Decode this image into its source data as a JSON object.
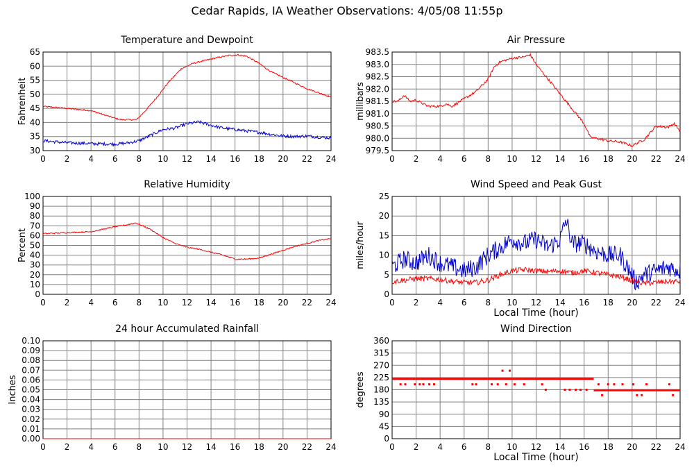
{
  "page_title": "Cedar Rapids, IA Weather Observations: 4/05/08 11:55p",
  "colors": {
    "red": "#ff0000",
    "blue": "#0000cc",
    "grid": "#808080",
    "frame": "#000000",
    "background": "#ffffff"
  },
  "chart_data": [
    {
      "id": "temp",
      "type": "line",
      "title": "Temperature and Dewpoint",
      "xlabel": "",
      "ylabel": "Fahrenheit",
      "xlim": [
        0,
        24
      ],
      "ylim": [
        30,
        65
      ],
      "xticks": [
        0,
        2,
        4,
        6,
        8,
        10,
        12,
        14,
        16,
        18,
        20,
        22,
        24
      ],
      "yticks": [
        "30",
        "35",
        "40",
        "45",
        "50",
        "55",
        "60",
        "65"
      ],
      "grid": true,
      "series": [
        {
          "color": "#ff0000",
          "noise": 0.25,
          "points": [
            [
              0,
              45.7
            ],
            [
              2,
              45
            ],
            [
              4,
              44.2
            ],
            [
              6,
              41.5
            ],
            [
              6.5,
              41
            ],
            [
              7.8,
              41
            ],
            [
              8.5,
              44
            ],
            [
              9.5,
              49
            ],
            [
              10.5,
              54.5
            ],
            [
              11.5,
              59
            ],
            [
              12.5,
              61
            ],
            [
              13.5,
              62
            ],
            [
              14.5,
              63
            ],
            [
              15.5,
              63.8
            ],
            [
              16.2,
              64
            ],
            [
              17,
              63.5
            ],
            [
              18,
              61
            ],
            [
              19,
              58
            ],
            [
              20,
              56
            ],
            [
              21,
              54
            ],
            [
              22,
              52
            ],
            [
              23,
              50.5
            ],
            [
              24,
              49
            ]
          ]
        },
        {
          "color": "#0000cc",
          "noise": 0.55,
          "points": [
            [
              0,
              33.5
            ],
            [
              2,
              32.8
            ],
            [
              4,
              32.5
            ],
            [
              6,
              32.3
            ],
            [
              7,
              32.7
            ],
            [
              8,
              33.5
            ],
            [
              9,
              35.5
            ],
            [
              10,
              37.5
            ],
            [
              11,
              38
            ],
            [
              12,
              39.5
            ],
            [
              13,
              40.2
            ],
            [
              14,
              39
            ],
            [
              15,
              38
            ],
            [
              16,
              37.5
            ],
            [
              17,
              37
            ],
            [
              18,
              36.5
            ],
            [
              19,
              35.8
            ],
            [
              20,
              35.2
            ],
            [
              21,
              35
            ],
            [
              22,
              35.2
            ],
            [
              23,
              34.8
            ],
            [
              24,
              34.5
            ]
          ]
        }
      ]
    },
    {
      "id": "pressure",
      "type": "line",
      "title": "Air Pressure",
      "xlabel": "",
      "ylabel": "millibars",
      "xlim": [
        0,
        24
      ],
      "ylim": [
        979.5,
        983.5
      ],
      "xticks": [
        0,
        2,
        4,
        6,
        8,
        10,
        12,
        14,
        16,
        18,
        20,
        22,
        24
      ],
      "yticks": [
        "979.5",
        "980.0",
        "980.5",
        "981.0",
        "981.5",
        "982.0",
        "982.5",
        "983.0",
        "983.5"
      ],
      "grid": true,
      "series": [
        {
          "color": "#ff0000",
          "noise": 0.05,
          "points": [
            [
              0,
              981.5
            ],
            [
              0.5,
              981.5
            ],
            [
              1,
              981.75
            ],
            [
              1.5,
              981.5
            ],
            [
              2,
              981.55
            ],
            [
              3,
              981.3
            ],
            [
              4,
              981.3
            ],
            [
              4.5,
              981.4
            ],
            [
              5,
              981.3
            ],
            [
              6,
              981.6
            ],
            [
              7,
              981.9
            ],
            [
              8,
              982.4
            ],
            [
              8.5,
              982.9
            ],
            [
              9,
              983.1
            ],
            [
              10,
              983.25
            ],
            [
              11,
              983.3
            ],
            [
              11.5,
              983.4
            ],
            [
              12,
              983.0
            ],
            [
              13,
              982.4
            ],
            [
              14,
              981.8
            ],
            [
              15,
              981.2
            ],
            [
              16,
              980.6
            ],
            [
              16.5,
              980.05
            ],
            [
              17,
              980.0
            ],
            [
              18,
              979.9
            ],
            [
              19,
              979.85
            ],
            [
              20,
              979.7
            ],
            [
              21,
              979.95
            ],
            [
              22,
              980.5
            ],
            [
              23,
              980.45
            ],
            [
              23.5,
              980.6
            ],
            [
              24,
              980.3
            ]
          ]
        }
      ]
    },
    {
      "id": "humidity",
      "type": "line",
      "title": "Relative Humidity",
      "xlabel": "",
      "ylabel": "Percent",
      "xlim": [
        0,
        24
      ],
      "ylim": [
        0,
        100
      ],
      "xticks": [
        0,
        2,
        4,
        6,
        8,
        10,
        12,
        14,
        16,
        18,
        20,
        22,
        24
      ],
      "yticks": [
        "0",
        "10",
        "20",
        "30",
        "40",
        "50",
        "60",
        "70",
        "80",
        "90",
        "100"
      ],
      "grid": true,
      "series": [
        {
          "color": "#ff0000",
          "noise": 0.6,
          "points": [
            [
              0,
              62
            ],
            [
              2,
              63
            ],
            [
              4,
              64
            ],
            [
              6,
              69
            ],
            [
              7,
              71
            ],
            [
              7.7,
              73
            ],
            [
              8.3,
              70
            ],
            [
              9,
              66
            ],
            [
              10,
              58
            ],
            [
              11,
              52
            ],
            [
              12,
              48
            ],
            [
              13,
              46
            ],
            [
              14,
              43
            ],
            [
              15,
              40
            ],
            [
              16,
              36
            ],
            [
              17,
              36
            ],
            [
              18,
              37
            ],
            [
              19,
              41
            ],
            [
              20,
              45
            ],
            [
              21,
              49
            ],
            [
              22,
              52
            ],
            [
              23,
              55
            ],
            [
              24,
              57
            ]
          ]
        }
      ]
    },
    {
      "id": "wind",
      "type": "line",
      "title": "Wind Speed and Peak Gust",
      "xlabel": "Local Time (hour)",
      "ylabel": "miles/hour",
      "xlim": [
        0,
        24
      ],
      "ylim": [
        0,
        25
      ],
      "xticks": [
        0,
        2,
        4,
        6,
        8,
        10,
        12,
        14,
        16,
        18,
        20,
        22,
        24
      ],
      "yticks": [
        "0",
        "5",
        "10",
        "15",
        "20",
        "25"
      ],
      "grid": true,
      "series": [
        {
          "color": "#0000cc",
          "noise": 2.4,
          "points": [
            [
              0,
              7
            ],
            [
              1,
              9
            ],
            [
              2,
              8
            ],
            [
              3,
              10
            ],
            [
              4,
              8
            ],
            [
              5,
              7
            ],
            [
              6,
              6
            ],
            [
              7,
              7
            ],
            [
              8,
              10
            ],
            [
              9,
              12
            ],
            [
              10,
              14
            ],
            [
              11,
              13
            ],
            [
              12,
              14
            ],
            [
              13,
              12
            ],
            [
              14,
              14
            ],
            [
              14.5,
              19
            ],
            [
              15,
              13
            ],
            [
              16,
              13
            ],
            [
              17,
              11
            ],
            [
              18,
              10
            ],
            [
              19,
              10
            ],
            [
              19.8,
              6
            ],
            [
              20.3,
              3
            ],
            [
              21,
              5
            ],
            [
              22,
              6
            ],
            [
              23,
              7
            ],
            [
              24,
              6
            ]
          ]
        },
        {
          "color": "#ff0000",
          "noise": 0.7,
          "points": [
            [
              0,
              3.2
            ],
            [
              2,
              4
            ],
            [
              3,
              4
            ],
            [
              4,
              3.8
            ],
            [
              5,
              3.3
            ],
            [
              6,
              3
            ],
            [
              7,
              3
            ],
            [
              8,
              3.6
            ],
            [
              9,
              5
            ],
            [
              10,
              6
            ],
            [
              11,
              6.3
            ],
            [
              12,
              6
            ],
            [
              13,
              5.8
            ],
            [
              14,
              6
            ],
            [
              15,
              5.5
            ],
            [
              16,
              6
            ],
            [
              17,
              5.5
            ],
            [
              18,
              5
            ],
            [
              19,
              4.5
            ],
            [
              20,
              3.5
            ],
            [
              21,
              2.8
            ],
            [
              22,
              3
            ],
            [
              23,
              3.3
            ],
            [
              24,
              3.2
            ]
          ]
        }
      ]
    },
    {
      "id": "rain",
      "type": "line",
      "title": "24 hour Accumulated Rainfall",
      "xlabel": "",
      "ylabel": "Inches",
      "xlim": [
        0,
        24
      ],
      "ylim": [
        0,
        0.1
      ],
      "xticks": [
        0,
        2,
        4,
        6,
        8,
        10,
        12,
        14,
        16,
        18,
        20,
        22,
        24
      ],
      "yticks": [
        "0.00",
        "0.01",
        "0.02",
        "0.03",
        "0.04",
        "0.05",
        "0.06",
        "0.07",
        "0.08",
        "0.09",
        "0.10"
      ],
      "grid": true,
      "series": [
        {
          "color": "#ff0000",
          "noise": 0,
          "points": [
            [
              0,
              0
            ],
            [
              24,
              0
            ]
          ]
        }
      ]
    },
    {
      "id": "direction",
      "type": "scatter",
      "title": "Wind Direction",
      "xlabel": "Local Time (hour)",
      "ylabel": "degrees",
      "xlim": [
        0,
        24
      ],
      "ylim": [
        0,
        360
      ],
      "xticks": [
        0,
        2,
        4,
        6,
        8,
        10,
        12,
        14,
        16,
        18,
        20,
        22,
        24
      ],
      "yticks": [
        "0",
        "45",
        "90",
        "135",
        "180",
        "225",
        "270",
        "315",
        "360"
      ],
      "grid": true,
      "series": [
        {
          "color": "#ff0000",
          "segments": [
            [
              0,
              16.8,
              220
            ],
            [
              16.8,
              24,
              178
            ]
          ],
          "points": [
            [
              0.7,
              200
            ],
            [
              1.1,
              200
            ],
            [
              1.9,
              200
            ],
            [
              2.3,
              200
            ],
            [
              2.6,
              200
            ],
            [
              3.1,
              200
            ],
            [
              3.5,
              200
            ],
            [
              6.7,
              200
            ],
            [
              7,
              200
            ],
            [
              8.3,
              200
            ],
            [
              8.8,
              200
            ],
            [
              9.2,
              250
            ],
            [
              9.5,
              200
            ],
            [
              9.8,
              250
            ],
            [
              10.2,
              200
            ],
            [
              11,
              200
            ],
            [
              12.5,
              200
            ],
            [
              12.8,
              180
            ],
            [
              14.4,
              180
            ],
            [
              14.8,
              180
            ],
            [
              15.3,
              180
            ],
            [
              15.7,
              180
            ],
            [
              16.2,
              180
            ],
            [
              17.2,
              200
            ],
            [
              17.5,
              160
            ],
            [
              18,
              200
            ],
            [
              18.5,
              200
            ],
            [
              19.2,
              200
            ],
            [
              20.1,
              200
            ],
            [
              20.4,
              160
            ],
            [
              20.8,
              160
            ],
            [
              21.2,
              200
            ],
            [
              23.1,
              200
            ],
            [
              23.4,
              160
            ]
          ]
        }
      ]
    }
  ]
}
